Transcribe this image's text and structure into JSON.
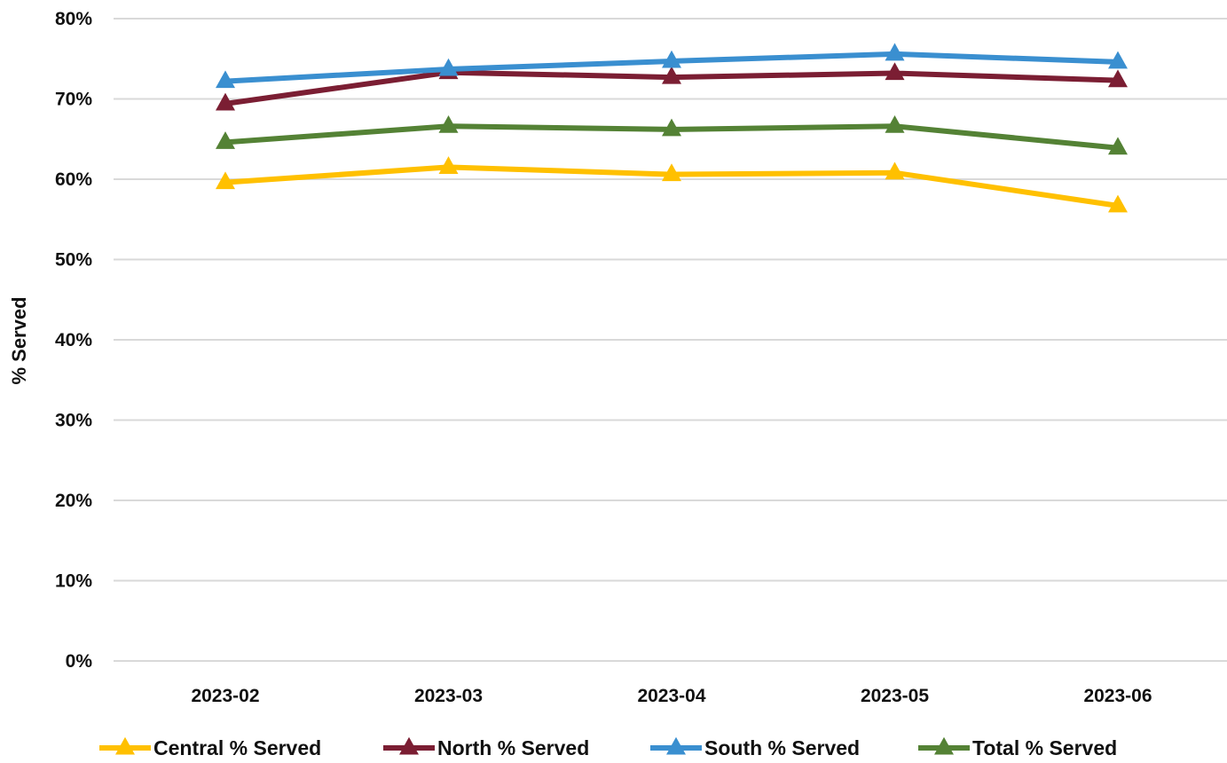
{
  "chart_data": {
    "type": "line",
    "title": "",
    "xlabel": "",
    "ylabel": "% Served",
    "categories": [
      "2023-02",
      "2023-03",
      "2023-04",
      "2023-05",
      "2023-06"
    ],
    "ylim": [
      0,
      80
    ],
    "yticks": [
      "0%",
      "10%",
      "20%",
      "30%",
      "40%",
      "50%",
      "60%",
      "70%",
      "80%"
    ],
    "grid": "horizontal",
    "legend_position": "bottom",
    "series": [
      {
        "name": "Central % Served",
        "color": "#FFC000",
        "marker": "triangle",
        "values": [
          59.6,
          61.5,
          60.6,
          60.8,
          56.7
        ]
      },
      {
        "name": "North % Served",
        "color": "#7B1E33",
        "marker": "triangle",
        "values": [
          69.4,
          73.3,
          72.7,
          73.2,
          72.3
        ]
      },
      {
        "name": "South % Served",
        "color": "#3A8FD0",
        "marker": "triangle",
        "values": [
          72.2,
          73.7,
          74.7,
          75.6,
          74.6
        ]
      },
      {
        "name": "Total % Served",
        "color": "#548235",
        "marker": "triangle",
        "values": [
          64.6,
          66.6,
          66.2,
          66.6,
          63.9
        ]
      }
    ]
  }
}
